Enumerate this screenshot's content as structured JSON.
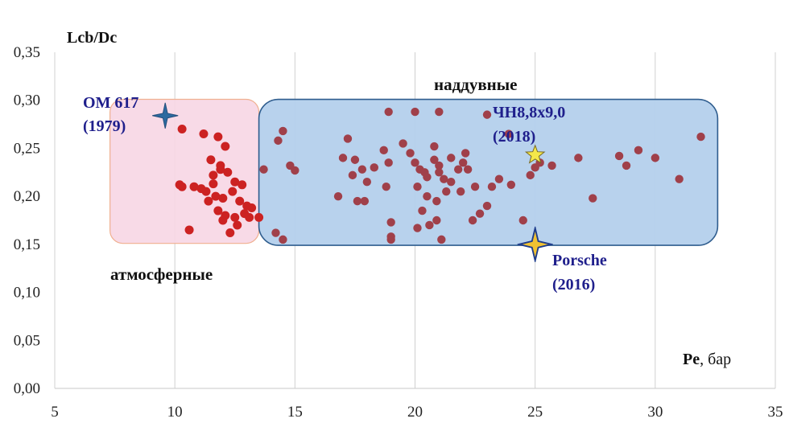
{
  "chart_data": {
    "type": "scatter",
    "xlabel": "Pe, бар",
    "xlabel_bold": "Pe",
    "xlabel_unit": ", бар",
    "ylabel": "Lcb/Dc",
    "xlim": [
      5,
      35
    ],
    "ylim": [
      0,
      0.35
    ],
    "x_ticks": [
      "5",
      "10",
      "15",
      "20",
      "25",
      "30",
      "35"
    ],
    "y_ticks": [
      "0,00",
      "0,05",
      "0,10",
      "0,15",
      "0,20",
      "0,25",
      "0,30",
      "0,35"
    ],
    "grid": "vertical",
    "marker_color": "#a0404a",
    "regions": [
      {
        "label": "атмосферные",
        "x": [
          7.3,
          13.5
        ],
        "y": [
          0.151,
          0.301
        ],
        "fill": "#f7d6e4",
        "stroke": "#f0b090"
      },
      {
        "label": "наддувные",
        "x": [
          13.5,
          32.6
        ],
        "y": [
          0.149,
          0.301
        ],
        "fill": "#b4d0ec",
        "stroke": "#2f5d8e"
      }
    ],
    "series": [
      {
        "name": "атмосферные",
        "color": "#cc2222",
        "x": [
          10.3,
          11.2,
          11.8,
          12.1,
          11.5,
          11.9,
          10.2,
          10.8,
          11.1,
          11.6,
          11.9,
          12.2,
          12.5,
          12.8,
          11.3,
          11.7,
          12.0,
          12.4,
          12.7,
          13.0,
          11.4,
          11.8,
          12.1,
          12.5,
          12.9,
          13.2,
          13.5,
          12.0,
          12.6,
          13.1,
          10.6,
          12.3,
          10.3,
          11.6
        ],
        "y": [
          0.27,
          0.265,
          0.262,
          0.252,
          0.238,
          0.232,
          0.212,
          0.21,
          0.208,
          0.222,
          0.228,
          0.225,
          0.215,
          0.212,
          0.205,
          0.2,
          0.198,
          0.205,
          0.195,
          0.19,
          0.195,
          0.185,
          0.18,
          0.178,
          0.182,
          0.188,
          0.178,
          0.175,
          0.17,
          0.178,
          0.165,
          0.162,
          0.21,
          0.213
        ]
      },
      {
        "name": "наддувные",
        "color": "#a0404a",
        "x": [
          14.5,
          14.3,
          14.8,
          15.0,
          13.7,
          14.2,
          14.5,
          17.2,
          17.0,
          17.5,
          17.8,
          17.4,
          18.0,
          18.3,
          18.7,
          18.9,
          16.8,
          17.6,
          17.9,
          18.8,
          19.0,
          19.0,
          18.9,
          19.5,
          19.8,
          20.0,
          20.2,
          20.4,
          20.5,
          20.8,
          21.0,
          20.1,
          20.5,
          20.9,
          21.3,
          20.3,
          20.6,
          21.2,
          21.5,
          21.8,
          21.0,
          21.5,
          22.0,
          22.2,
          22.5,
          21.9,
          22.1,
          22.4,
          22.7,
          23.0,
          23.2,
          23.5,
          24.0,
          24.5,
          25.0,
          25.2,
          25.7,
          24.8,
          23.9,
          26.8,
          27.4,
          28.5,
          28.8,
          29.3,
          30.0,
          31.0,
          31.9,
          21.0,
          20.8,
          19.0,
          23.0,
          20.0,
          21.1,
          20.1,
          20.9
        ],
        "y": [
          0.268,
          0.258,
          0.232,
          0.227,
          0.228,
          0.162,
          0.155,
          0.26,
          0.24,
          0.238,
          0.228,
          0.222,
          0.215,
          0.23,
          0.248,
          0.235,
          0.2,
          0.195,
          0.195,
          0.21,
          0.173,
          0.155,
          0.288,
          0.255,
          0.245,
          0.235,
          0.228,
          0.225,
          0.22,
          0.238,
          0.232,
          0.21,
          0.2,
          0.195,
          0.205,
          0.185,
          0.17,
          0.218,
          0.215,
          0.228,
          0.225,
          0.24,
          0.235,
          0.228,
          0.21,
          0.205,
          0.245,
          0.175,
          0.182,
          0.19,
          0.21,
          0.218,
          0.212,
          0.175,
          0.23,
          0.235,
          0.232,
          0.222,
          0.265,
          0.24,
          0.198,
          0.242,
          0.232,
          0.248,
          0.24,
          0.218,
          0.262,
          0.288,
          0.252,
          0.158,
          0.285,
          0.288,
          0.155,
          0.167,
          0.175
        ]
      }
    ],
    "highlighted_engines": [
      {
        "line1": "ОМ 617",
        "line2": "(1979)",
        "x": 9.6,
        "y": 0.284,
        "marker": "four-point-star",
        "marker_color": "#2c6aa0"
      },
      {
        "line1": "ЧН8,8х9,0",
        "line2": "(2018)",
        "x": 25.0,
        "y": 0.243,
        "marker": "five-point-star",
        "marker_color": "#f5e84a"
      },
      {
        "line1": "Porsche",
        "line2": "(2016)",
        "x": 25.0,
        "y": 0.15,
        "marker": "four-point-star",
        "marker_color": "#f1c232"
      }
    ]
  }
}
